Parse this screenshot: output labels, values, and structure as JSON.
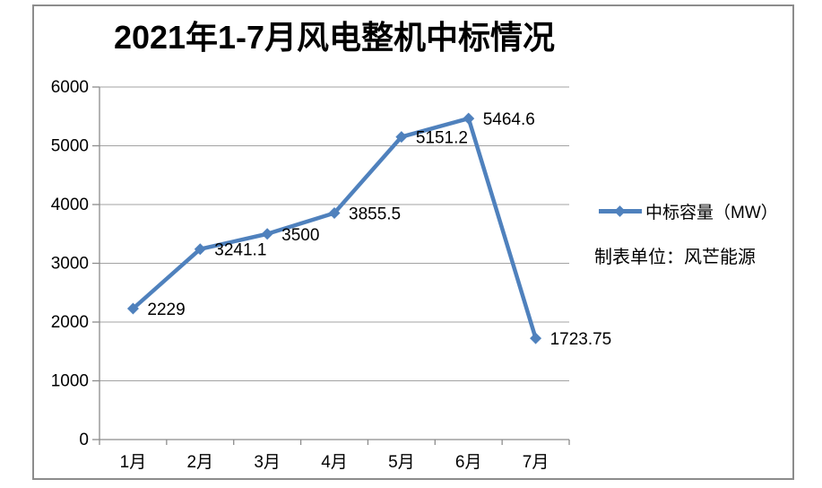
{
  "chart_data": {
    "type": "line",
    "title": "2021年1-7月风电整机中标情况",
    "categories": [
      "1月",
      "2月",
      "3月",
      "4月",
      "5月",
      "6月",
      "7月"
    ],
    "series": [
      {
        "name": "中标容量（MW）",
        "values": [
          2229,
          3241.1,
          3500,
          3855.5,
          5151.2,
          5464.6,
          1723.75
        ],
        "labels": [
          "2229",
          "3241.1",
          "3500",
          "3855.5",
          "5151.2",
          "5464.6",
          "1723.75"
        ],
        "color": "#4F81BD",
        "marker": "diamond"
      }
    ],
    "xlabel": "",
    "ylabel": "",
    "ylim": [
      0,
      6000
    ],
    "yticks": [
      0,
      1000,
      2000,
      3000,
      4000,
      5000,
      6000
    ],
    "ytick_labels": [
      "0",
      "1000",
      "2000",
      "3000",
      "4000",
      "5000",
      "6000"
    ],
    "grid": true,
    "legend_position": "right",
    "annotation": "制表单位：风芒能源"
  },
  "legend": {
    "label": "中标容量（MW）"
  },
  "note": {
    "text": "制表单位：风芒能源"
  },
  "colors": {
    "line": "#4F81BD",
    "gridline": "#a3a3a3",
    "axis": "#8c8c8c",
    "frame_border": "#8c8c8c",
    "text": "#000000",
    "background": "#ffffff"
  }
}
